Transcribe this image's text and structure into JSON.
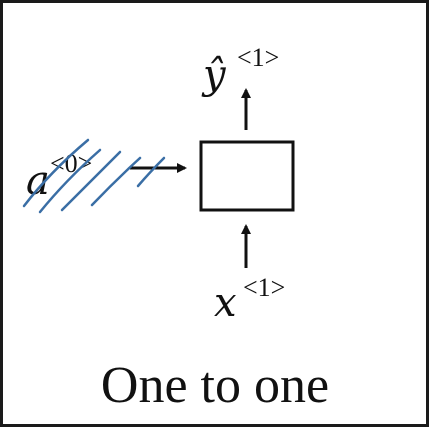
{
  "diagram": {
    "caption": "One to one",
    "output": {
      "base": "ŷ",
      "superscript": "<1>"
    },
    "input": {
      "base": "x",
      "superscript": "<1>"
    },
    "initial_activation": {
      "base": "a",
      "superscript": "<0>",
      "struck_out": true
    },
    "colors": {
      "ink": "#111111",
      "annotation": "#3a6ea5",
      "border": "#1a1a1a"
    }
  }
}
